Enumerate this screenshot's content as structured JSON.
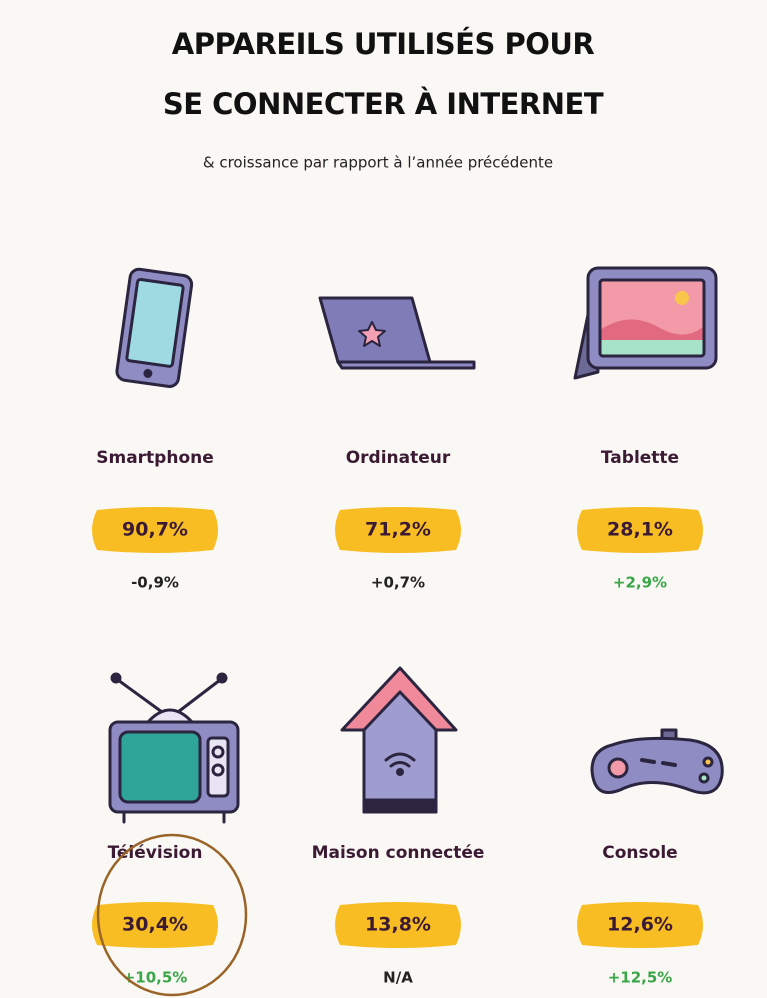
{
  "title_lines": [
    "APPAREILS UTILISÉS POUR",
    "SE CONNECTER À INTERNET"
  ],
  "subtitle": "& croissance par rapport à l’année précédente",
  "devices": [
    {
      "label": "Smartphone",
      "share": "90,7%",
      "growth": "-0,9%",
      "growth_color": "#222222"
    },
    {
      "label": "Ordinateur",
      "share": "71,2%",
      "growth": "+0,7%",
      "growth_color": "#222222"
    },
    {
      "label": "Tablette",
      "share": "28,1%",
      "growth": "+2,9%",
      "growth_color": "#3aa648"
    },
    {
      "label": "Télévision",
      "share": "30,4%",
      "growth": "+10,5%",
      "growth_color": "#3aa648"
    },
    {
      "label": "Maison connectée",
      "share": "13,8%",
      "growth": "N/A",
      "growth_color": "#222222"
    },
    {
      "label": "Console",
      "share": "12,6%",
      "growth": "+12,5%",
      "growth_color": "#3aa648"
    }
  ]
}
